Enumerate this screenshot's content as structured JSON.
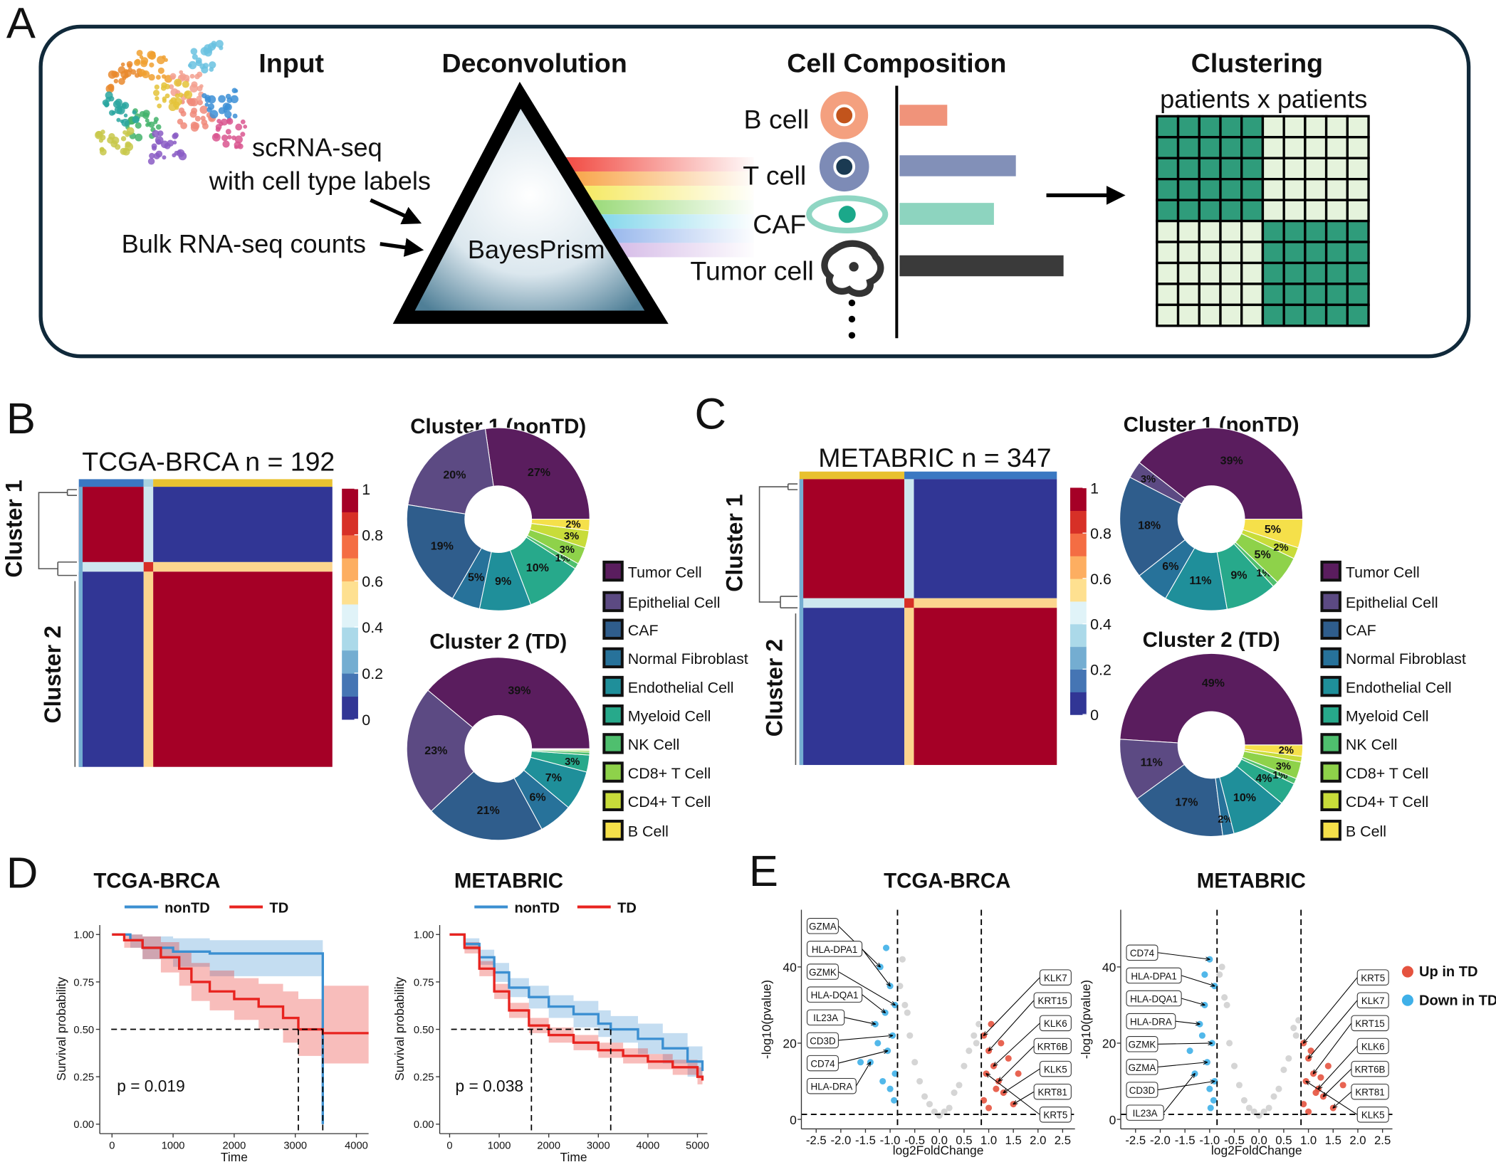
{
  "panels": [
    "A",
    "B",
    "C",
    "D",
    "E"
  ],
  "diagram": {
    "headings": [
      "Input",
      "Deconvolution",
      "Cell Composition",
      "Clustering"
    ],
    "clustering_subtitle": "patients x patients",
    "input_labels": [
      "scRNA-seq",
      "with cell type labels",
      "Bulk RNA-seq counts"
    ],
    "method": "BayesPrism",
    "cells": [
      "B cell",
      "T cell",
      "CAF",
      "Tumor cell"
    ]
  },
  "chart_data": [
    {
      "type": "heatmap",
      "title": "TCGA-BRCA n = 192",
      "row_labels": [
        "Cluster 1",
        "Cluster 2"
      ],
      "colorbar_lim": [
        0,
        1
      ],
      "colorbar_ticks": [
        0,
        0.2,
        0.4,
        0.6,
        0.8,
        1
      ]
    },
    {
      "type": "pie",
      "categories": [
        "Tumor Cell",
        "Epithelial Cell",
        "CAF",
        "Normal Fibroblast",
        "Endothelial Cell",
        "Myeloid Cell",
        "NK Cell",
        "CD8+ T Cell",
        "CD4+ T Cell",
        "B Cell"
      ],
      "colors": [
        "#5a1d5e",
        "#5c4a83",
        "#2f5d8c",
        "#27729a",
        "#1f8f9a",
        "#27a98b",
        "#4fbf6e",
        "#8ed24a",
        "#c8dc3a",
        "#f5e04a"
      ],
      "series": [
        {
          "name": "Cluster 1 (nonTD)",
          "values": [
            27,
            20,
            19,
            5,
            9,
            10,
            1,
            3,
            3,
            2
          ],
          "value_labels": [
            "27%",
            "20%",
            "19%",
            "5%",
            "9%",
            "10%",
            "1%",
            "3%",
            "3%",
            "2%"
          ]
        },
        {
          "name": "Cluster 2 (TD)",
          "values": [
            39,
            23,
            21,
            6,
            7,
            3,
            0.5,
            0.3,
            0.2,
            0.1
          ],
          "value_labels": [
            "39%",
            "23%",
            "21%",
            "6%",
            "7%",
            "3%",
            null,
            null,
            null,
            null
          ]
        }
      ]
    },
    {
      "type": "heatmap",
      "title": "METABRIC n = 347",
      "row_labels": [
        "Cluster 1",
        "Cluster 2"
      ],
      "colorbar_lim": [
        0,
        1
      ],
      "colorbar_ticks": [
        0,
        0.2,
        0.4,
        0.6,
        0.8,
        1
      ]
    },
    {
      "type": "pie",
      "categories": [
        "Tumor Cell",
        "Epithelial Cell",
        "CAF",
        "Normal Fibroblast",
        "Endothelial Cell",
        "Myeloid Cell",
        "NK Cell",
        "CD8+ T Cell",
        "CD4+ T Cell",
        "B Cell"
      ],
      "colors": [
        "#5a1d5e",
        "#5c4a83",
        "#2f5d8c",
        "#27729a",
        "#1f8f9a",
        "#27a98b",
        "#4fbf6e",
        "#8ed24a",
        "#c8dc3a",
        "#f5e04a"
      ],
      "series": [
        {
          "name": "Cluster 1 (nonTD)",
          "values": [
            39,
            3,
            18,
            6,
            11,
            9,
            1,
            5,
            2,
            5
          ],
          "value_labels": [
            "39%",
            "3%",
            "18%",
            "6%",
            "11%",
            "9%",
            "1%",
            "5%",
            "2%",
            "5%"
          ]
        },
        {
          "name": "Cluster 2 (TD)",
          "values": [
            49,
            11,
            17,
            2,
            10,
            4,
            1,
            3,
            1,
            2
          ],
          "value_labels": [
            "49%",
            "11%",
            "17%",
            "2%",
            "10%",
            "4%",
            "1%",
            "3%",
            null,
            "2%"
          ]
        }
      ]
    },
    {
      "type": "km",
      "title": "TCGA-BRCA",
      "x_label": "Time",
      "y_label": "Survival probability",
      "annotation": "p = 0.019",
      "xlim": [
        -200,
        4200
      ],
      "ylim": [
        -0.05,
        1.05
      ],
      "xticks": [
        0,
        1000,
        2000,
        3000,
        4000
      ],
      "yticks": [
        {
          "value": 0,
          "label": "0.00"
        },
        {
          "value": 0.25,
          "label": "0.25"
        },
        {
          "value": 0.5,
          "label": "0.50"
        },
        {
          "value": 0.75,
          "label": "0.75"
        },
        {
          "value": 1,
          "label": "1.00"
        }
      ],
      "reference": {
        "y": 0.5,
        "x": [
          3050,
          3450
        ]
      },
      "series": [
        {
          "name": "nonTD",
          "color": "#3b8fd1",
          "x": [
            0,
            300,
            500,
            1000,
            1600,
            3450
          ],
          "values": [
            1,
            0.97,
            0.93,
            0.91,
            0.9,
            0
          ],
          "ci_lower": [
            1,
            0.93,
            0.87,
            0.83,
            0.78,
            0.78
          ],
          "ci_upper": [
            1,
            1,
            0.99,
            0.98,
            0.97,
            0.97
          ]
        },
        {
          "name": "TD",
          "color": "#e8231f",
          "x": [
            0,
            200,
            500,
            800,
            1100,
            1300,
            1600,
            2000,
            2400,
            2800,
            3050,
            3450,
            4200
          ],
          "values": [
            1,
            0.97,
            0.93,
            0.88,
            0.82,
            0.75,
            0.7,
            0.66,
            0.62,
            0.56,
            0.5,
            0.48,
            0.48
          ],
          "ci_lower": [
            1,
            0.93,
            0.87,
            0.8,
            0.73,
            0.65,
            0.6,
            0.55,
            0.5,
            0.43,
            0.36,
            0.32,
            0.32
          ],
          "ci_upper": [
            1,
            1,
            0.99,
            0.96,
            0.91,
            0.85,
            0.81,
            0.77,
            0.74,
            0.7,
            0.66,
            0.73,
            0.73
          ]
        }
      ]
    },
    {
      "type": "km",
      "title": "METABRIC",
      "x_label": "Time",
      "y_label": "Survival probability",
      "annotation": "p = 0.038",
      "xlim": [
        -200,
        5200
      ],
      "ylim": [
        -0.05,
        1.05
      ],
      "xticks": [
        0,
        1000,
        2000,
        3000,
        4000,
        5000
      ],
      "yticks": [
        {
          "value": 0,
          "label": "0.00"
        },
        {
          "value": 0.25,
          "label": "0.25"
        },
        {
          "value": 0.5,
          "label": "0.50"
        },
        {
          "value": 0.75,
          "label": "0.75"
        },
        {
          "value": 1,
          "label": "1.00"
        }
      ],
      "reference": {
        "y": 0.5,
        "x": [
          1650,
          3250
        ]
      },
      "series": [
        {
          "name": "nonTD",
          "color": "#3b8fd1",
          "x": [
            0,
            300,
            600,
            900,
            1200,
            1600,
            2000,
            2500,
            3000,
            3250,
            3800,
            4300,
            4800,
            5100
          ],
          "values": [
            1,
            0.95,
            0.88,
            0.8,
            0.72,
            0.67,
            0.62,
            0.58,
            0.53,
            0.5,
            0.45,
            0.4,
            0.33,
            0.28
          ],
          "ci_lower": [
            1,
            0.92,
            0.84,
            0.75,
            0.67,
            0.61,
            0.56,
            0.51,
            0.46,
            0.43,
            0.37,
            0.32,
            0.25,
            0.2
          ],
          "ci_upper": [
            1,
            0.98,
            0.92,
            0.85,
            0.77,
            0.73,
            0.68,
            0.65,
            0.6,
            0.57,
            0.53,
            0.48,
            0.41,
            0.37
          ]
        },
        {
          "name": "TD",
          "color": "#e8231f",
          "x": [
            0,
            300,
            600,
            900,
            1200,
            1600,
            2000,
            2500,
            3000,
            3500,
            4000,
            4500,
            5000,
            5100
          ],
          "values": [
            1,
            0.93,
            0.82,
            0.7,
            0.6,
            0.52,
            0.47,
            0.43,
            0.39,
            0.36,
            0.33,
            0.3,
            0.25,
            0.23
          ],
          "ci_lower": [
            1,
            0.9,
            0.78,
            0.66,
            0.56,
            0.48,
            0.43,
            0.39,
            0.35,
            0.32,
            0.29,
            0.26,
            0.21,
            0.19
          ],
          "ci_upper": [
            1,
            0.96,
            0.86,
            0.74,
            0.64,
            0.56,
            0.51,
            0.47,
            0.43,
            0.4,
            0.37,
            0.34,
            0.3,
            0.28
          ]
        }
      ]
    },
    {
      "type": "volcano",
      "title": "TCGA-BRCA",
      "x_label": "log2FoldChange",
      "y_label": "-log10(pvalue)",
      "xlim": [
        -2.8,
        2.75
      ],
      "ylim": [
        -2.5,
        55
      ],
      "xticks": [
        -2.5,
        {
          "value": -2,
          "label": "-2.0"
        },
        -1.5,
        {
          "value": -1,
          "label": "-1.0"
        },
        -0.5,
        {
          "value": 0,
          "label": "0.0"
        },
        0.5,
        {
          "value": 1,
          "label": "1.0"
        },
        1.5,
        {
          "value": 2,
          "label": "2.0"
        },
        2.5
      ],
      "yticks": [
        0,
        20,
        40
      ],
      "thresholds": {
        "x": [
          -0.85,
          0.85
        ],
        "y": 1.3
      },
      "labels_left": [
        "GZMA",
        "HLA-DPA1",
        "GZMK",
        "HLA-DQA1",
        "IL23A",
        "CD3D",
        "CD74",
        "HLA-DRA"
      ],
      "labels_right": [
        "KLK7",
        "KRT15",
        "KLK6",
        "KRT6B",
        "KLK5",
        "KRT81",
        "KRT5"
      ],
      "series": [
        {
          "color": "#d0d0d0",
          "x": [
            -0.8,
            -0.6,
            -0.4,
            -0.2,
            0,
            0.2,
            0.4,
            0.6,
            0.8,
            -0.7,
            -0.5,
            -0.3,
            0.3,
            0.5,
            0.7,
            -0.75,
            0.75,
            -0.65,
            0.1,
            -0.1
          ],
          "values": [
            35,
            22,
            10,
            4,
            1,
            3,
            9,
            18,
            25,
            30,
            15,
            6,
            7,
            14,
            22,
            42,
            20,
            28,
            2,
            2
          ]
        },
        {
          "color": "#e5533f",
          "x": [
            0.9,
            1,
            1.1,
            1.2,
            1.3,
            1.5,
            0.95,
            1.05,
            1.15,
            1.4,
            0.9,
            1.25,
            1.6,
            1
          ],
          "values": [
            22,
            18,
            14,
            10,
            7,
            4,
            12,
            25,
            8,
            16,
            5,
            20,
            12,
            3
          ]
        },
        {
          "color": "#3fb0e8",
          "x": [
            -1.2,
            -1,
            -0.9,
            -1.1,
            -1.3,
            -0.95,
            -1.05,
            -1.4,
            -0.9,
            -1.15,
            -1,
            -1.25,
            -0.92,
            -1.6,
            -1.08
          ],
          "values": [
            40,
            35,
            30,
            28,
            25,
            22,
            18,
            15,
            12,
            10,
            8,
            20,
            5,
            15,
            45
          ]
        }
      ]
    },
    {
      "type": "volcano",
      "title": "METABRIC",
      "x_label": "log2FoldChange",
      "y_label": "-log10(pvalue)",
      "xlim": [
        -2.8,
        2.7
      ],
      "ylim": [
        -2.5,
        55
      ],
      "xticks": [
        -2.5,
        {
          "value": -2,
          "label": "-2.0"
        },
        -1.5,
        {
          "value": -1,
          "label": "-1.0"
        },
        -0.5,
        {
          "value": 0,
          "label": "0.0"
        },
        0.5,
        {
          "value": 1,
          "label": "1.0"
        },
        1.5,
        {
          "value": 2,
          "label": "2.0"
        },
        2.5
      ],
      "yticks": [
        0,
        20,
        40
      ],
      "thresholds": {
        "x": [
          -0.85,
          0.85
        ],
        "y": 1.3
      },
      "labels_left": [
        "CD74",
        "HLA-DPA1",
        "HLA-DQA1",
        "HLA-DRA",
        "GZMK",
        "GZMA",
        "CD3D",
        "IL23A"
      ],
      "labels_right": [
        "KRT5",
        "KLK7",
        "KRT15",
        "KLK6",
        "KRT6B",
        "KRT81",
        "KLK5"
      ],
      "series": [
        {
          "color": "#d0d0d0",
          "x": [
            -0.8,
            -0.6,
            -0.4,
            -0.2,
            0,
            0.2,
            0.4,
            0.6,
            0.8,
            -0.7,
            -0.5,
            -0.3,
            0.3,
            0.5,
            0.7,
            -0.75,
            0.75,
            -0.65,
            0.1,
            -0.1
          ],
          "values": [
            38,
            20,
            9,
            3,
            1,
            3,
            8,
            16,
            26,
            32,
            14,
            5,
            6,
            13,
            24,
            40,
            22,
            30,
            2,
            2
          ]
        },
        {
          "name": "Up in TD",
          "color": "#e5533f",
          "x": [
            0.9,
            1,
            1.1,
            1.2,
            1.3,
            1.5,
            0.95,
            1.05,
            1.15,
            1.4,
            0.9,
            1.25,
            1.7,
            1
          ],
          "values": [
            20,
            16,
            12,
            8,
            6,
            3,
            10,
            18,
            7,
            14,
            4,
            11,
            9,
            2
          ]
        },
        {
          "name": "Down in TD",
          "color": "#3fb0e8",
          "x": [
            -1,
            -0.9,
            -1.1,
            -1.2,
            -0.95,
            -1.05,
            -0.9,
            -1.3,
            -1,
            -0.92,
            -1.15,
            -1.4,
            -0.98,
            -1.1
          ],
          "values": [
            42,
            35,
            30,
            25,
            20,
            15,
            10,
            12,
            8,
            5,
            22,
            18,
            3,
            38
          ]
        }
      ]
    }
  ]
}
